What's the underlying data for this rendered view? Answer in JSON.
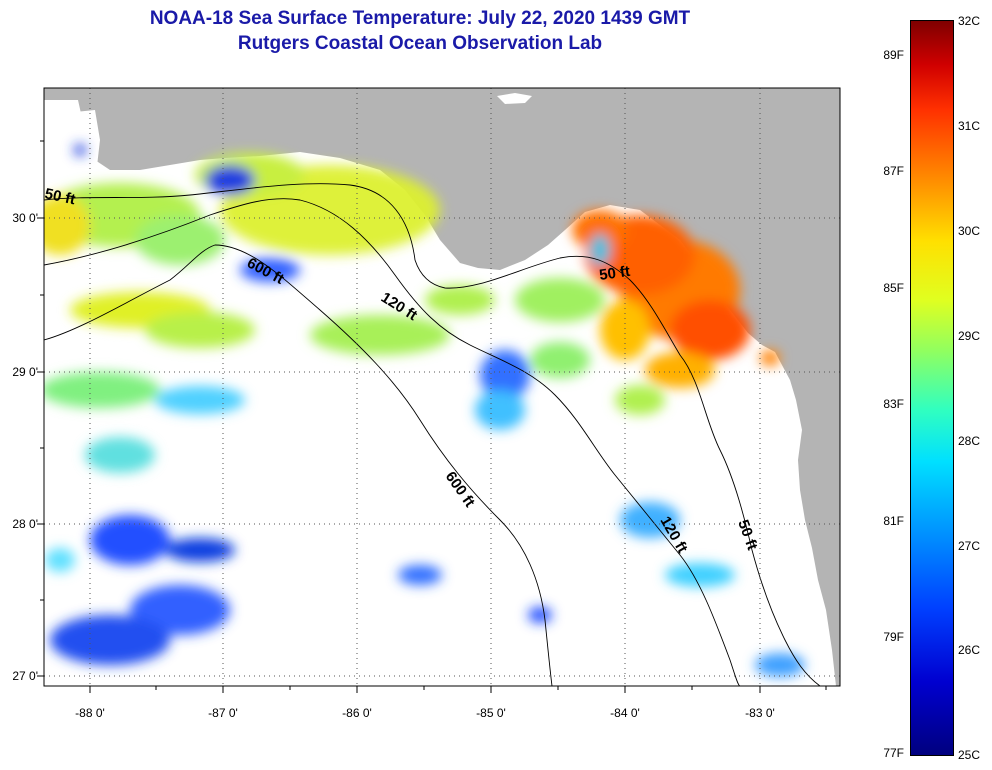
{
  "title": {
    "line1": "NOAA-18 Sea Surface Temperature:  July 22, 2020 1439 GMT",
    "line2": "Rutgers Coastal Ocean Observation Lab"
  },
  "map": {
    "latitude_labels": [
      "30 0'",
      "29 0'",
      "28 0'",
      "27 0'"
    ],
    "longitude_labels": [
      "-88 0'",
      "-87 0'",
      "-86 0'",
      "-85 0'",
      "-84 0'",
      "-83 0'"
    ],
    "depth_contour_labels": {
      "c50_west": "50 ft",
      "c600_north": "600 ft",
      "c120_north": "120 ft",
      "c50_bigbend": "50 ft",
      "c600_south": "600 ft",
      "c120_south": "120 ft",
      "c50_south": "50 ft"
    },
    "land_color": "#b4b4b4",
    "no_data_color": "#ffffff"
  },
  "colorbar": {
    "celsius": [
      "32C",
      "31C",
      "30C",
      "29C",
      "28C",
      "27C",
      "26C",
      "25C"
    ],
    "fahrenheit": [
      "89F",
      "87F",
      "85F",
      "83F",
      "81F",
      "79F",
      "77F"
    ]
  }
}
